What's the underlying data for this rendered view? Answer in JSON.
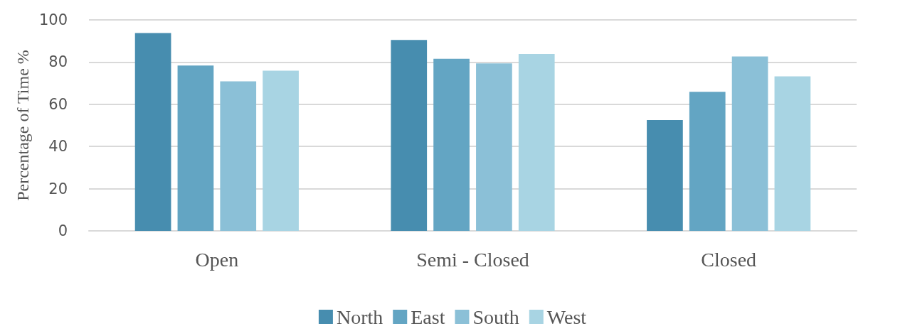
{
  "chart_data": {
    "type": "bar",
    "ylabel": "Percentage of Time %",
    "categories": [
      "Open",
      "Semi - Closed",
      "Closed"
    ],
    "series": [
      {
        "name": "North",
        "color": "#478daf",
        "values": [
          93.8,
          90.5,
          52.5
        ]
      },
      {
        "name": "East",
        "color": "#63a5c3",
        "values": [
          78.4,
          81.6,
          65.9
        ]
      },
      {
        "name": "South",
        "color": "#8bc0d7",
        "values": [
          70.9,
          79.4,
          82.7
        ]
      },
      {
        "name": "West",
        "color": "#a8d4e3",
        "values": [
          75.9,
          83.8,
          73.2
        ]
      }
    ],
    "ylim": [
      0,
      100
    ],
    "yticks": [
      0,
      20,
      40,
      60,
      80,
      100
    ],
    "grid": "y",
    "legend": "bottom"
  }
}
